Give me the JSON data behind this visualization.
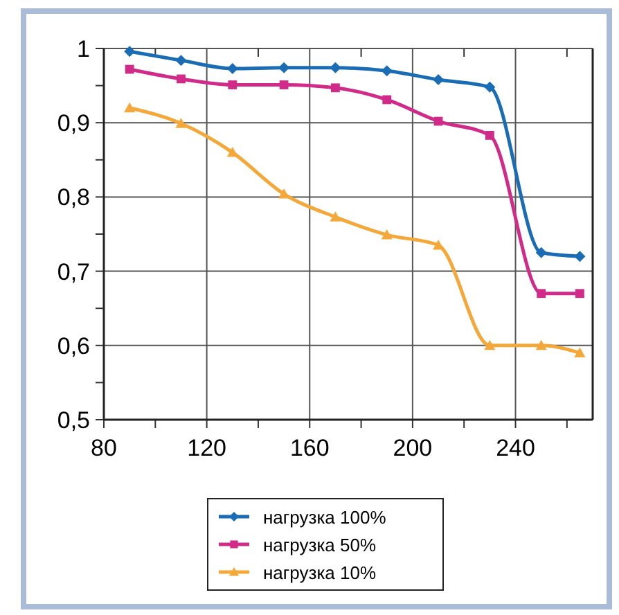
{
  "chart_data": {
    "type": "line",
    "x": [
      90,
      110,
      130,
      150,
      170,
      190,
      210,
      230,
      250,
      265
    ],
    "series": [
      {
        "name": "нагрузка 100%",
        "color": "#1a6db5",
        "marker": "diamond",
        "values": [
          0.996,
          0.984,
          0.973,
          0.974,
          0.974,
          0.97,
          0.958,
          0.948,
          0.725,
          0.72
        ]
      },
      {
        "name": "нагрузка 50%",
        "color": "#d12b8a",
        "marker": "square",
        "values": [
          0.972,
          0.959,
          0.951,
          0.951,
          0.947,
          0.931,
          0.902,
          0.883,
          0.67,
          0.67
        ]
      },
      {
        "name": "нагрузка 10%",
        "color": "#f5a83a",
        "marker": "triangle",
        "values": [
          0.92,
          0.899,
          0.86,
          0.804,
          0.773,
          0.749,
          0.735,
          0.6,
          0.6,
          0.59
        ]
      }
    ],
    "xlim": [
      80,
      270
    ],
    "xticks": [
      80,
      {
        "value": 100,
        "label": null
      },
      120,
      {
        "value": 140,
        "label": null
      },
      160,
      {
        "value": 180,
        "label": null
      },
      200,
      {
        "value": 220,
        "label": null
      },
      240,
      {
        "value": 260,
        "label": null
      }
    ],
    "ylim": [
      0.5,
      1.0
    ],
    "yticks": [
      {
        "value": 0.5,
        "label": "0,5"
      },
      {
        "value": 0.55,
        "label": null
      },
      {
        "value": 0.6,
        "label": "0,6"
      },
      {
        "value": 0.65,
        "label": null
      },
      {
        "value": 0.7,
        "label": "0,7"
      },
      {
        "value": 0.75,
        "label": null
      },
      {
        "value": 0.8,
        "label": "0,8"
      },
      {
        "value": 0.85,
        "label": null
      },
      {
        "value": 0.9,
        "label": "0,9"
      },
      {
        "value": 0.95,
        "label": null
      },
      {
        "value": 1,
        "label": "1"
      }
    ],
    "grid": true,
    "legend": "bottom",
    "line_style": "solid"
  }
}
